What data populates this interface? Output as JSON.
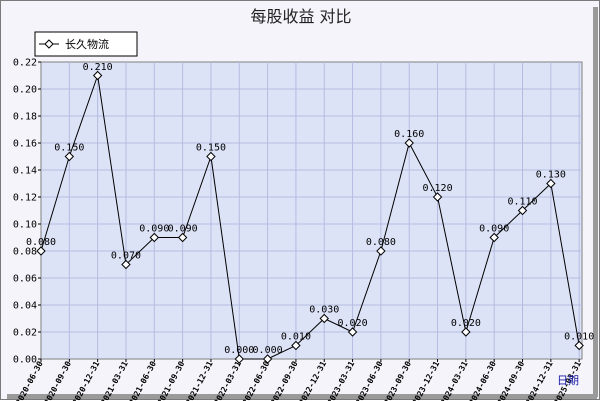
{
  "chart_data": {
    "type": "line",
    "title": "每股收益  对比",
    "legend": [
      "长久物流"
    ],
    "legend_position": "top-left",
    "xunit": "日期",
    "grid": true,
    "ylim": [
      0,
      0.22
    ],
    "yticks": [
      "0.00",
      "0.02",
      "0.04",
      "0.06",
      "0.08",
      "0.10",
      "0.12",
      "0.14",
      "0.16",
      "0.18",
      "0.20",
      "0.22"
    ],
    "categories": [
      "2020-06-30",
      "2020-09-30",
      "2020-12-31",
      "2021-03-31",
      "2021-06-30",
      "2021-09-30",
      "2021-12-31",
      "2022-03-31",
      "2022-06-30",
      "2022-09-30",
      "2022-12-31",
      "2023-03-31",
      "2023-06-30",
      "2023-09-30",
      "2023-12-31",
      "2024-03-31",
      "2024-06-30",
      "2024-09-30",
      "2024-12-31",
      "2025-03-31"
    ],
    "values": [
      0.08,
      0.15,
      0.21,
      0.07,
      0.09,
      0.09,
      0.15,
      0.0,
      0.0,
      0.01,
      0.03,
      0.02,
      0.08,
      0.16,
      0.12,
      0.02,
      0.09,
      0.11,
      0.13,
      0.01
    ],
    "labels": [
      "0.080",
      "0.150",
      "0.210",
      "0.070",
      "0.090",
      "0.090",
      "0.150",
      "0.000",
      "0.000",
      "0.010",
      "0.030",
      "0.020",
      "0.080",
      "0.160",
      "0.120",
      "0.020",
      "0.090",
      "0.110",
      "0.130",
      "0.010"
    ],
    "colors": {
      "plot_bg": "#dde3f7",
      "grid": "#b4bce0",
      "line": "#000000",
      "frame_bg": "#f4f4fa"
    }
  }
}
